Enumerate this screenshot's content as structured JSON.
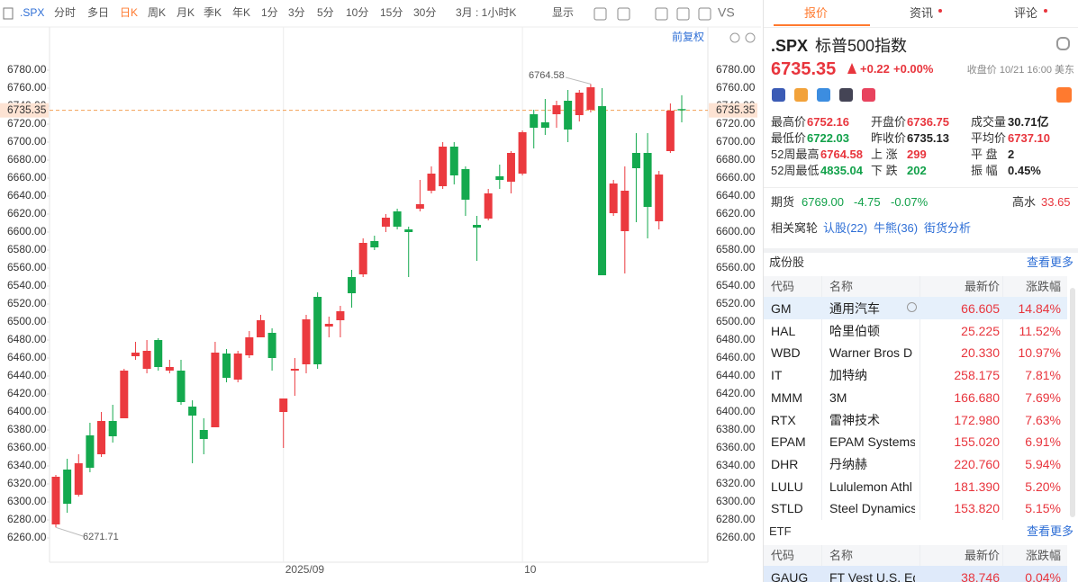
{
  "toolbar": {
    "symbol": ".SPX",
    "periods": [
      "分时",
      "多日",
      "日K",
      "周K",
      "月K",
      "季K",
      "年K",
      "1分",
      "3分",
      "5分",
      "10分",
      "15分",
      "30分"
    ],
    "range": "3月 : 1小时K",
    "display": "显示",
    "compare": "VS"
  },
  "chart_data": {
    "type": "candlestick",
    "adjust_label": "前复权",
    "categories": [
      null,
      null,
      null,
      null,
      null,
      null,
      null,
      null,
      null,
      null,
      null,
      null,
      null,
      null,
      null,
      null,
      null,
      null,
      null,
      null,
      "2025/09",
      null,
      null,
      null,
      null,
      null,
      null,
      null,
      null,
      null,
      null,
      null,
      null,
      null,
      null,
      null,
      null,
      null,
      null,
      null,
      null,
      "10",
      null,
      null,
      null,
      null,
      null,
      null,
      null,
      null,
      null,
      null,
      null,
      null,
      null,
      null
    ],
    "candles": [
      {
        "open": 6275,
        "high": 6330,
        "low": 6271.71,
        "close": 6328
      },
      {
        "open": 6336,
        "high": 6348,
        "low": 6288,
        "close": 6298
      },
      {
        "open": 6308,
        "high": 6353,
        "low": 6306,
        "close": 6343
      },
      {
        "open": 6374,
        "high": 6388,
        "low": 6333,
        "close": 6338
      },
      {
        "open": 6353,
        "high": 6400,
        "low": 6350,
        "close": 6390
      },
      {
        "open": 6390,
        "high": 6408,
        "low": 6366,
        "close": 6373
      },
      {
        "open": 6393,
        "high": 6448,
        "low": 6393,
        "close": 6446
      },
      {
        "open": 6462,
        "high": 6478,
        "low": 6458,
        "close": 6466
      },
      {
        "open": 6448,
        "high": 6480,
        "low": 6443,
        "close": 6468
      },
      {
        "open": 6480,
        "high": 6482,
        "low": 6446,
        "close": 6450
      },
      {
        "open": 6446,
        "high": 6458,
        "low": 6443,
        "close": 6450
      },
      {
        "open": 6446,
        "high": 6458,
        "low": 6408,
        "close": 6411
      },
      {
        "open": 6406,
        "high": 6413,
        "low": 6343,
        "close": 6396
      },
      {
        "open": 6380,
        "high": 6393,
        "low": 6353,
        "close": 6370
      },
      {
        "open": 6383,
        "high": 6478,
        "low": 6383,
        "close": 6466
      },
      {
        "open": 6465,
        "high": 6470,
        "low": 6433,
        "close": 6438
      },
      {
        "open": 6436,
        "high": 6468,
        "low": 6433,
        "close": 6465
      },
      {
        "open": 6463,
        "high": 6490,
        "low": 6460,
        "close": 6483
      },
      {
        "open": 6483,
        "high": 6508,
        "low": 6483,
        "close": 6502
      },
      {
        "open": 6488,
        "high": 6493,
        "low": 6446,
        "close": 6460
      },
      {
        "open": 6400,
        "high": 6415,
        "low": 6360,
        "close": 6415
      },
      {
        "open": 6446,
        "high": 6460,
        "low": 6418,
        "close": 6448
      },
      {
        "open": 6453,
        "high": 6508,
        "low": 6443,
        "close": 6503
      },
      {
        "open": 6528,
        "high": 6533,
        "low": 6448,
        "close": 6453
      },
      {
        "open": 6495,
        "high": 6506,
        "low": 6483,
        "close": 6498
      },
      {
        "open": 6502,
        "high": 6518,
        "low": 6483,
        "close": 6512
      },
      {
        "open": 6550,
        "high": 6558,
        "low": 6516,
        "close": 6532
      },
      {
        "open": 6553,
        "high": 6593,
        "low": 6550,
        "close": 6588
      },
      {
        "open": 6590,
        "high": 6596,
        "low": 6580,
        "close": 6583
      },
      {
        "open": 6606,
        "high": 6620,
        "low": 6600,
        "close": 6616
      },
      {
        "open": 6623,
        "high": 6626,
        "low": 6603,
        "close": 6606
      },
      {
        "open": 6603,
        "high": 6606,
        "low": 6550,
        "close": 6600
      },
      {
        "open": 6626,
        "high": 6658,
        "low": 6623,
        "close": 6631
      },
      {
        "open": 6646,
        "high": 6673,
        "low": 6643,
        "close": 6665
      },
      {
        "open": 6651,
        "high": 6700,
        "low": 6648,
        "close": 6695
      },
      {
        "open": 6695,
        "high": 6700,
        "low": 6653,
        "close": 6663
      },
      {
        "open": 6670,
        "high": 6673,
        "low": 6618,
        "close": 6636
      },
      {
        "open": 6608,
        "high": 6618,
        "low": 6568,
        "close": 6605
      },
      {
        "open": 6615,
        "high": 6648,
        "low": 6613,
        "close": 6643
      },
      {
        "open": 6662,
        "high": 6675,
        "low": 6648,
        "close": 6658
      },
      {
        "open": 6656,
        "high": 6690,
        "low": 6643,
        "close": 6688
      },
      {
        "open": 6665,
        "high": 6713,
        "low": 6663,
        "close": 6711
      },
      {
        "open": 6731,
        "high": 6736,
        "low": 6693,
        "close": 6716
      },
      {
        "open": 6722,
        "high": 6748,
        "low": 6708,
        "close": 6716
      },
      {
        "open": 6731,
        "high": 6746,
        "low": 6716,
        "close": 6741
      },
      {
        "open": 6746,
        "high": 6758,
        "low": 6700,
        "close": 6714
      },
      {
        "open": 6730,
        "high": 6758,
        "low": 6723,
        "close": 6755
      },
      {
        "open": 6736,
        "high": 6764.58,
        "low": 6733,
        "close": 6761
      },
      {
        "open": 6740,
        "high": 6760,
        "low": 6552,
        "close": 6552
      },
      {
        "open": 6621,
        "high": 6658,
        "low": 6618,
        "close": 6654
      },
      {
        "open": 6601,
        "high": 6673,
        "low": 6554,
        "close": 6646
      },
      {
        "open": 6688,
        "high": 6710,
        "low": 6611,
        "close": 6671
      },
      {
        "open": 6688,
        "high": 6710,
        "low": 6593,
        "close": 6628
      },
      {
        "open": 6612,
        "high": 6668,
        "low": 6603,
        "close": 6664
      },
      {
        "open": 6690,
        "high": 6743,
        "low": 6688,
        "close": 6735
      },
      {
        "open": 6736.75,
        "high": 6752.16,
        "low": 6722.03,
        "close": 6735.35
      }
    ],
    "ylim": [
      6233,
      6823
    ],
    "yticks": [
      {
        "value": 6260,
        "label": "6260.00"
      },
      {
        "value": 6280,
        "label": "6280.00"
      },
      {
        "value": 6300,
        "label": "6300.00"
      },
      {
        "value": 6320,
        "label": "6320.00"
      },
      {
        "value": 6340,
        "label": "6340.00"
      },
      {
        "value": 6360,
        "label": "6360.00"
      },
      {
        "value": 6380,
        "label": "6380.00"
      },
      {
        "value": 6400,
        "label": "6400.00"
      },
      {
        "value": 6420,
        "label": "6420.00"
      },
      {
        "value": 6440,
        "label": "6440.00"
      },
      {
        "value": 6460,
        "label": "6460.00"
      },
      {
        "value": 6480,
        "label": "6480.00"
      },
      {
        "value": 6500,
        "label": "6500.00"
      },
      {
        "value": 6520,
        "label": "6520.00"
      },
      {
        "value": 6540,
        "label": "6540.00"
      },
      {
        "value": 6560,
        "label": "6560.00"
      },
      {
        "value": 6580,
        "label": "6580.00"
      },
      {
        "value": 6600,
        "label": "6600.00"
      },
      {
        "value": 6620,
        "label": "6620.00"
      },
      {
        "value": 6640,
        "label": "6640.00"
      },
      {
        "value": 6660,
        "label": "6660.00"
      },
      {
        "value": 6680,
        "label": "6680.00"
      },
      {
        "value": 6700,
        "label": "6700.00"
      },
      {
        "value": 6720,
        "label": "6720.00"
      },
      {
        "value": 6740,
        "label": "6740.00"
      },
      {
        "value": 6760,
        "label": "6760.00"
      },
      {
        "value": 6780,
        "label": "6780.00"
      }
    ],
    "grid": false,
    "up_color": "#eb3a3f",
    "down_color": "#14a94e",
    "last_price_color": "#f3a055"
  },
  "panel": {
    "tabs": [
      "报价",
      "资讯",
      "评论"
    ],
    "quote": {
      "symbol": ".SPX",
      "name": "标普500指数",
      "price": "6735.35",
      "change": "+0.22",
      "change_pct": "+0.00%",
      "status": "收盘价 10/21 16:00 美东"
    },
    "stats": [
      [
        [
          "最高价",
          "6752.16"
        ],
        [
          "开盘价",
          "6736.75"
        ],
        [
          "成交量",
          "30.71亿"
        ]
      ],
      [
        [
          "最低价",
          "6722.03"
        ],
        [
          "昨收价",
          "6735.13"
        ],
        [
          "平均价",
          "6737.10"
        ]
      ],
      [
        [
          "52周最高",
          "6764.58"
        ],
        [
          "上 涨",
          "299"
        ],
        [
          "平 盘",
          "2"
        ]
      ],
      [
        [
          "52周最低",
          "4835.04"
        ],
        [
          "下 跌",
          "202"
        ],
        [
          "振 幅",
          "0.45%"
        ]
      ]
    ],
    "futures": {
      "label": "期货",
      "price": "6769.00",
      "change": "-4.75",
      "change_pct": "-0.07%",
      "premium_label": "高水",
      "premium": "33.65"
    },
    "warrants": {
      "label": "相关窝轮",
      "links": [
        "认股(22)",
        "牛熊(36)",
        "街货分析"
      ]
    },
    "constituents": {
      "title": "成份股",
      "more": "查看更多",
      "columns": [
        "代码",
        "名称",
        "最新价",
        "涨跌幅"
      ],
      "rows": [
        [
          "GM",
          "通用汽车",
          "66.605",
          "14.84%"
        ],
        [
          "HAL",
          "哈里伯顿",
          "25.225",
          "11.52%"
        ],
        [
          "WBD",
          "Warner Bros D",
          "20.330",
          "10.97%"
        ],
        [
          "IT",
          "加特纳",
          "258.175",
          "7.81%"
        ],
        [
          "MMM",
          "3M",
          "166.680",
          "7.69%"
        ],
        [
          "RTX",
          "雷神技术",
          "172.980",
          "7.63%"
        ],
        [
          "EPAM",
          "EPAM Systems",
          "155.020",
          "6.91%"
        ],
        [
          "DHR",
          "丹纳赫",
          "220.760",
          "5.94%"
        ],
        [
          "LULU",
          "Lululemon Athl",
          "181.390",
          "5.20%"
        ],
        [
          "STLD",
          "Steel Dynamics",
          "153.820",
          "5.15%"
        ]
      ]
    },
    "etf": {
      "title": "ETF",
      "more": "查看更多",
      "columns": [
        "代码",
        "名称",
        "最新价",
        "涨跌幅"
      ],
      "rows": [
        [
          "GAUG",
          "FT Vest U.S. Equ",
          "38.746",
          "0.04%"
        ]
      ]
    }
  }
}
